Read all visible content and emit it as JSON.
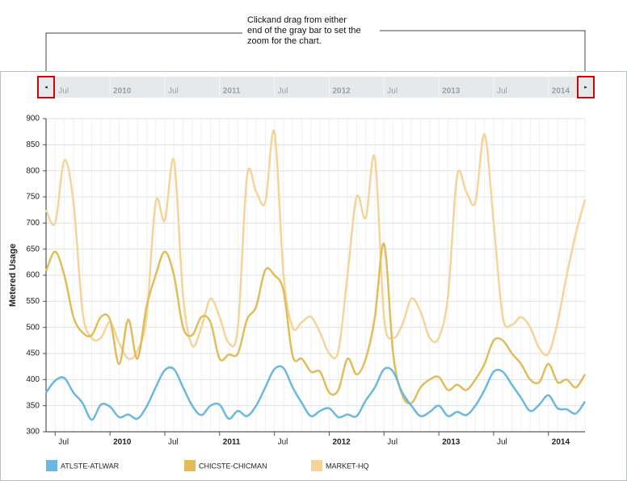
{
  "annotation": [
    "Clickand drag from either",
    "end of the gray bar to set the",
    "zoom for the chart."
  ],
  "chart_data": {
    "type": "line",
    "y_label": "Metered Usage",
    "grid": true,
    "smooth": true,
    "x": [
      "2009-06",
      "2009-07",
      "2009-08",
      "2009-09",
      "2009-10",
      "2009-11",
      "2009-12",
      "2010-01",
      "2010-02",
      "2010-03",
      "2010-04",
      "2010-05",
      "2010-06",
      "2010-07",
      "2010-08",
      "2010-09",
      "2010-10",
      "2010-11",
      "2010-12",
      "2011-01",
      "2011-02",
      "2011-03",
      "2011-04",
      "2011-05",
      "2011-06",
      "2011-07",
      "2011-08",
      "2011-09",
      "2011-10",
      "2011-11",
      "2011-12",
      "2012-01",
      "2012-02",
      "2012-03",
      "2012-04",
      "2012-05",
      "2012-06",
      "2012-07",
      "2012-08",
      "2012-09",
      "2012-10",
      "2012-11",
      "2012-12",
      "2013-01",
      "2013-02",
      "2013-03",
      "2013-04",
      "2013-05",
      "2013-06",
      "2013-07",
      "2013-08",
      "2013-09",
      "2013-10",
      "2013-11",
      "2013-12",
      "2014-01",
      "2014-02",
      "2014-03",
      "2014-04",
      "2014-05"
    ],
    "xlim": [
      "2009-06",
      "2014-05"
    ],
    "xticks": [
      {
        "value": "2009-07",
        "label": "Jul"
      },
      {
        "value": "2010-01",
        "label": "2010"
      },
      {
        "value": "2010-07",
        "label": "Jul"
      },
      {
        "value": "2011-01",
        "label": "2011"
      },
      {
        "value": "2011-07",
        "label": "Jul"
      },
      {
        "value": "2012-01",
        "label": "2012"
      },
      {
        "value": "2012-07",
        "label": "Jul"
      },
      {
        "value": "2013-01",
        "label": "2013"
      },
      {
        "value": "2013-07",
        "label": "Jul"
      },
      {
        "value": "2014-01",
        "label": "2014"
      }
    ],
    "ylim": [
      300,
      900
    ],
    "yticks": [
      300,
      350,
      400,
      450,
      500,
      550,
      600,
      650,
      700,
      750,
      800,
      850,
      900
    ],
    "series": [
      {
        "name": "ATLSTE-ATLWAR",
        "color": "#6bb8e0",
        "values": [
          375,
          398,
          403,
          375,
          355,
          323,
          352,
          348,
          328,
          333,
          325,
          348,
          385,
          418,
          420,
          385,
          350,
          332,
          350,
          352,
          325,
          340,
          330,
          350,
          385,
          420,
          422,
          385,
          355,
          330,
          340,
          345,
          328,
          333,
          330,
          360,
          385,
          420,
          415,
          375,
          350,
          330,
          338,
          350,
          330,
          338,
          332,
          350,
          380,
          415,
          415,
          390,
          365,
          340,
          352,
          370,
          345,
          343,
          335,
          358
        ]
      },
      {
        "name": "CHICSTE-CHICMAN",
        "color": "#e0bd5a",
        "values": [
          608,
          645,
          600,
          520,
          490,
          485,
          520,
          515,
          430,
          515,
          440,
          540,
          600,
          645,
          600,
          500,
          485,
          520,
          510,
          440,
          448,
          450,
          515,
          540,
          610,
          600,
          570,
          445,
          440,
          415,
          415,
          375,
          380,
          440,
          410,
          440,
          520,
          660,
          450,
          370,
          355,
          385,
          400,
          405,
          380,
          390,
          380,
          400,
          430,
          475,
          475,
          450,
          430,
          400,
          395,
          430,
          395,
          400,
          385,
          410
        ]
      },
      {
        "name": "MARKET-HQ",
        "color": "#f5d49a",
        "values": [
          725,
          700,
          820,
          740,
          530,
          480,
          480,
          510,
          470,
          440,
          455,
          520,
          740,
          705,
          820,
          560,
          465,
          500,
          555,
          520,
          470,
          500,
          790,
          760,
          740,
          875,
          600,
          500,
          510,
          520,
          490,
          450,
          455,
          600,
          750,
          710,
          825,
          520,
          480,
          505,
          555,
          530,
          480,
          480,
          560,
          790,
          760,
          740,
          870,
          700,
          520,
          505,
          520,
          500,
          460,
          450,
          510,
          600,
          680,
          745
        ]
      }
    ]
  }
}
